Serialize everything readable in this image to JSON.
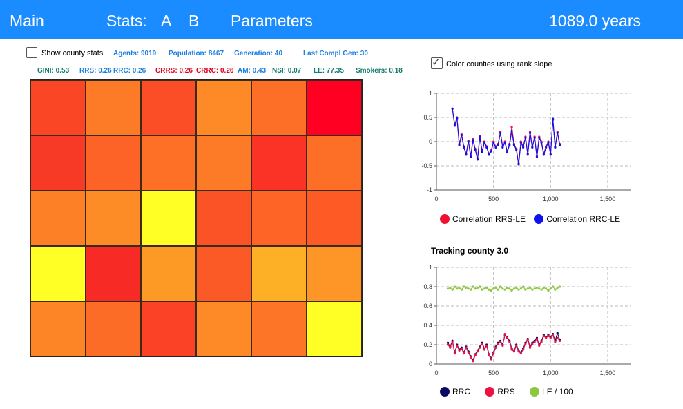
{
  "header": {
    "main": "Main",
    "stats": "Stats:",
    "a": "A",
    "b": "B",
    "parameters": "Parameters",
    "years": "1089.0 years"
  },
  "stats_row1": {
    "show_county_stats": "Show county stats",
    "agents": "Agents: 9019",
    "population": "Population: 8467",
    "generation": "Generation: 40",
    "last_compl_gen": "Last Compl Gen: 30"
  },
  "stats_row2": {
    "gini": "GINI: 0.53",
    "rrs": "RRS: 0.26",
    "rrc": "RRC: 0.26",
    "crrs": "CRRS: 0.26",
    "crrc": "CRRC: 0.26",
    "am": "AM: 0.43",
    "nsi": "NSI: 0.07",
    "le": "LE: 77.35",
    "smokers": "Smokers: 0.18"
  },
  "color_counties": {
    "label": "Color counties using rank slope",
    "checked": true
  },
  "county_grid": {
    "rows": 5,
    "cols": 6,
    "colors": [
      "#fb4626",
      "#fd7b26",
      "#fb4e26",
      "#fd8a26",
      "#fd6e26",
      "#ff0022",
      "#f73a26",
      "#fd6326",
      "#fd7026",
      "#fd7b26",
      "#fb3226",
      "#fd6e26",
      "#fd7f26",
      "#fd8c26",
      "#ffff26",
      "#fb5226",
      "#fd6426",
      "#fd5a26",
      "#ffff26",
      "#f82a26",
      "#fd9a26",
      "#fb5a26",
      "#fdb026",
      "#fd9626",
      "#fd8526",
      "#fd6c26",
      "#fb4226",
      "#fd8a26",
      "#fd7526",
      "#ffff26"
    ]
  },
  "chart_data": [
    {
      "type": "line",
      "title": "",
      "xlim": [
        0,
        1700
      ],
      "ylim": [
        -1,
        1
      ],
      "x_ticks": [
        "0",
        "500",
        "1,000",
        "1,500"
      ],
      "y_ticks": [
        "1",
        "0.5",
        "0",
        "-0.5",
        "-1"
      ],
      "grid": true,
      "legend_placement": "bottom",
      "x": [
        140,
        160,
        180,
        200,
        220,
        240,
        260,
        280,
        300,
        320,
        340,
        360,
        380,
        400,
        420,
        440,
        460,
        480,
        500,
        520,
        540,
        560,
        580,
        600,
        620,
        640,
        660,
        680,
        700,
        720,
        740,
        760,
        780,
        800,
        820,
        840,
        860,
        880,
        900,
        920,
        940,
        960,
        980,
        1000,
        1020,
        1040,
        1060,
        1080
      ],
      "series": [
        {
          "name": "Correlation RRS-LE",
          "color": "#ee1133",
          "values": [
            0.68,
            0.35,
            0.5,
            -0.05,
            0.15,
            -0.1,
            -0.25,
            0.02,
            -0.3,
            0.05,
            -0.15,
            -0.35,
            0.12,
            -0.2,
            0.0,
            -0.1,
            -0.25,
            -0.18,
            0.0,
            -0.1,
            -0.05,
            0.2,
            -0.1,
            0.0,
            -0.2,
            -0.05,
            0.3,
            -0.05,
            -0.15,
            -0.45,
            0.0,
            -0.1,
            0.1,
            -0.25,
            0.2,
            -0.1,
            0.1,
            -0.3,
            0.1,
            0.0,
            -0.25,
            -0.1,
            0.0,
            -0.25,
            0.45,
            -0.1,
            0.2,
            -0.05
          ]
        },
        {
          "name": "Correlation RRC-LE",
          "color": "#1111ee",
          "values": [
            0.68,
            0.33,
            0.48,
            -0.07,
            0.13,
            -0.12,
            -0.27,
            0.0,
            -0.32,
            0.03,
            -0.17,
            -0.37,
            0.1,
            -0.22,
            -0.02,
            -0.12,
            -0.27,
            -0.2,
            -0.02,
            -0.12,
            -0.07,
            0.18,
            -0.12,
            -0.02,
            -0.22,
            -0.07,
            0.22,
            -0.07,
            -0.17,
            -0.47,
            -0.02,
            -0.12,
            0.08,
            -0.27,
            0.18,
            -0.12,
            0.08,
            -0.32,
            0.08,
            -0.02,
            -0.27,
            -0.12,
            -0.02,
            -0.27,
            0.47,
            -0.12,
            0.18,
            -0.07
          ]
        }
      ]
    },
    {
      "type": "line",
      "title": "Tracking county 3.0",
      "xlim": [
        0,
        1700
      ],
      "ylim": [
        0,
        1
      ],
      "x_ticks": [
        "0",
        "500",
        "1,000",
        "1,500"
      ],
      "y_ticks": [
        "1",
        "0.8",
        "0.6",
        "0.4",
        "0.2",
        "0"
      ],
      "grid": true,
      "legend_placement": "bottom",
      "x": [
        100,
        120,
        140,
        160,
        180,
        200,
        220,
        240,
        260,
        280,
        300,
        320,
        340,
        360,
        380,
        400,
        420,
        440,
        460,
        480,
        500,
        520,
        540,
        560,
        580,
        600,
        620,
        640,
        660,
        680,
        700,
        720,
        740,
        760,
        780,
        800,
        820,
        840,
        860,
        880,
        900,
        920,
        940,
        960,
        980,
        1000,
        1020,
        1040,
        1060,
        1080
      ],
      "series": [
        {
          "name": "RRC",
          "color": "#0a0a66",
          "values": [
            0.22,
            0.18,
            0.24,
            0.12,
            0.2,
            0.15,
            0.17,
            0.12,
            0.18,
            0.13,
            0.08,
            0.04,
            0.1,
            0.14,
            0.18,
            0.22,
            0.16,
            0.2,
            0.1,
            0.06,
            0.12,
            0.18,
            0.22,
            0.24,
            0.2,
            0.3,
            0.28,
            0.24,
            0.16,
            0.14,
            0.2,
            0.14,
            0.12,
            0.16,
            0.22,
            0.26,
            0.18,
            0.22,
            0.24,
            0.27,
            0.2,
            0.24,
            0.3,
            0.28,
            0.3,
            0.28,
            0.31,
            0.24,
            0.32,
            0.25
          ]
        },
        {
          "name": "RRS",
          "color": "#ee1144",
          "values": [
            0.2,
            0.17,
            0.23,
            0.11,
            0.19,
            0.14,
            0.16,
            0.11,
            0.17,
            0.12,
            0.07,
            0.03,
            0.09,
            0.13,
            0.17,
            0.21,
            0.15,
            0.19,
            0.09,
            0.05,
            0.11,
            0.17,
            0.21,
            0.23,
            0.19,
            0.31,
            0.27,
            0.23,
            0.15,
            0.13,
            0.19,
            0.13,
            0.11,
            0.15,
            0.21,
            0.25,
            0.17,
            0.21,
            0.23,
            0.26,
            0.19,
            0.23,
            0.29,
            0.27,
            0.29,
            0.27,
            0.3,
            0.23,
            0.27,
            0.24
          ]
        },
        {
          "name": "LE / 100",
          "color": "#8dc63f",
          "values": [
            0.78,
            0.79,
            0.77,
            0.8,
            0.78,
            0.79,
            0.77,
            0.8,
            0.79,
            0.78,
            0.77,
            0.8,
            0.78,
            0.79,
            0.8,
            0.77,
            0.78,
            0.79,
            0.77,
            0.76,
            0.78,
            0.79,
            0.77,
            0.8,
            0.78,
            0.77,
            0.79,
            0.78,
            0.76,
            0.78,
            0.79,
            0.77,
            0.78,
            0.8,
            0.77,
            0.78,
            0.79,
            0.77,
            0.78,
            0.79,
            0.78,
            0.77,
            0.79,
            0.78,
            0.76,
            0.78,
            0.8,
            0.77,
            0.79,
            0.8
          ]
        }
      ]
    }
  ]
}
